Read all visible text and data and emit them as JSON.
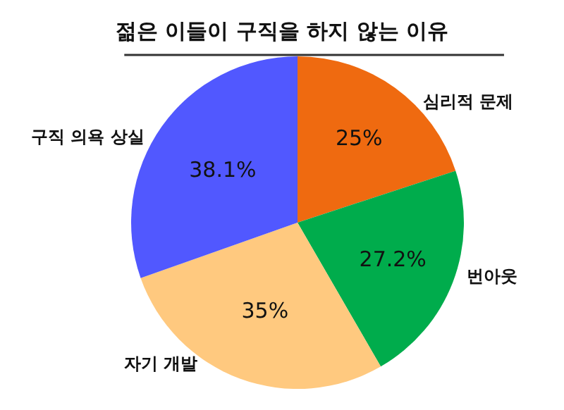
{
  "chart_data": {
    "type": "pie",
    "title": "젊은 이들이 구직을 하지 않는 이유",
    "categories": [
      "심리적 문제",
      "번아웃",
      "자기 개발",
      "구직 의욕 상실"
    ],
    "values": [
      25,
      27.2,
      35,
      38.1
    ],
    "value_labels": [
      "25%",
      "27.2%",
      "35%",
      "38.1%"
    ],
    "colors": [
      "#ef6a10",
      "#00ac4c",
      "#ffc97f",
      "#5158ff"
    ]
  }
}
